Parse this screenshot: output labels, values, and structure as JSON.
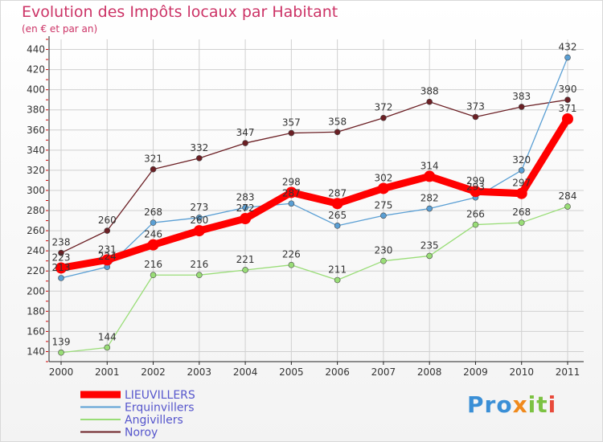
{
  "title": "Evolution des Impôts locaux par Habitant",
  "subtitle": "(en € et par an)",
  "logo": {
    "text_a": "Pro",
    "text_b": "x",
    "text_c": "it",
    "text_d": "i"
  },
  "colors": {
    "lieuvillers": "#ff0000",
    "erquinvillers": "#5a9fd4",
    "angivillers": "#99dd77",
    "noroy": "#6b1f24",
    "title": "#cc3366",
    "legend_text": "#5555cc",
    "tick_mark": "#cc0000"
  },
  "chart_data": {
    "type": "line",
    "x": [
      "2000",
      "2001",
      "2002",
      "2003",
      "2004",
      "2005",
      "2006",
      "2007",
      "2008",
      "2009",
      "2010",
      "2011"
    ],
    "ylim": [
      130,
      450
    ],
    "yticks": [
      140,
      160,
      180,
      200,
      220,
      240,
      260,
      280,
      300,
      320,
      340,
      360,
      380,
      400,
      420,
      440
    ],
    "grid": true,
    "legend_position": "bottom-left",
    "series": [
      {
        "key": "noroy",
        "name": "Noroy",
        "values": [
          238,
          260,
          321,
          332,
          347,
          357,
          358,
          372,
          388,
          373,
          383,
          390
        ]
      },
      {
        "key": "erquinvillers",
        "name": "Erquinvillers",
        "values": [
          213,
          224,
          268,
          273,
          283,
          287,
          265,
          275,
          282,
          293,
          320,
          432
        ]
      },
      {
        "key": "angivillers",
        "name": "Angivillers",
        "values": [
          139,
          144,
          216,
          216,
          221,
          226,
          211,
          230,
          235,
          266,
          268,
          284
        ]
      },
      {
        "key": "lieuvillers",
        "name": "LIEUVILLERS",
        "values": [
          223,
          231,
          246,
          260,
          272,
          298,
          287,
          302,
          314,
          299,
          297,
          371
        ]
      }
    ],
    "legend_order": [
      "lieuvillers",
      "erquinvillers",
      "angivillers",
      "noroy"
    ]
  }
}
